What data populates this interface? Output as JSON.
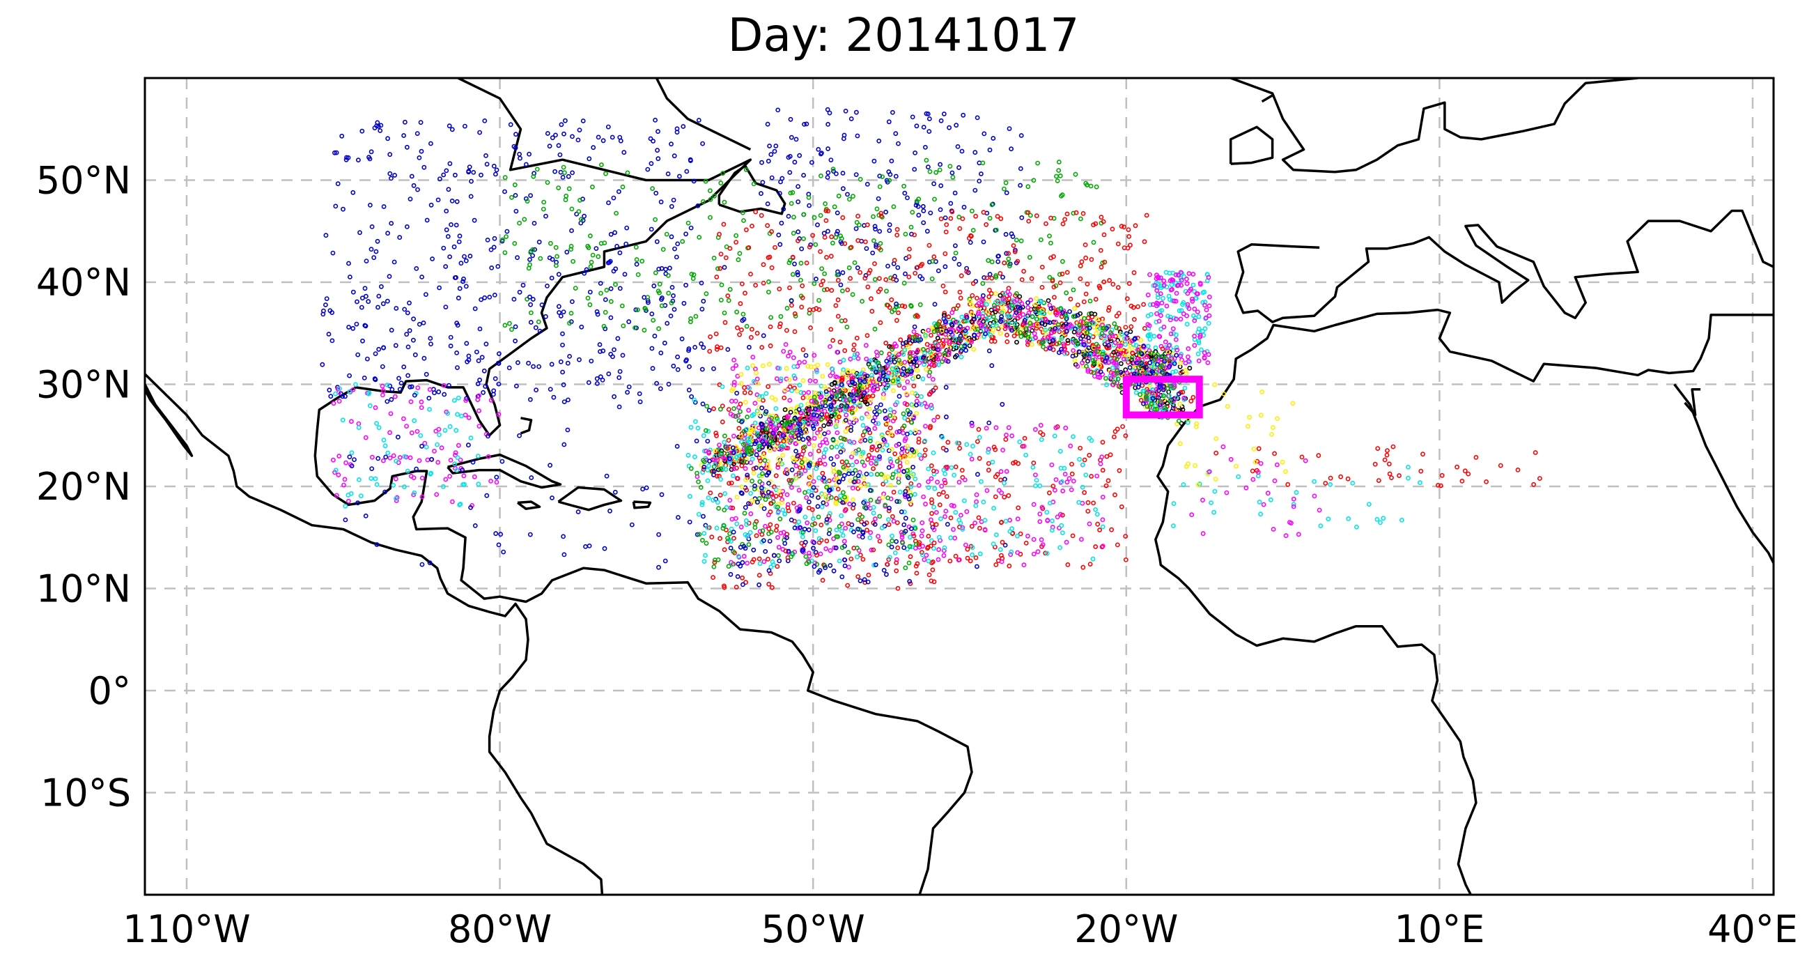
{
  "title": "Day: 20141017",
  "map": {
    "projection": "PlateCarree",
    "lon_range": [
      -114,
      42
    ],
    "lat_range": [
      -20,
      60
    ],
    "gridlines": true,
    "lon_ticks": [
      {
        "value": -110,
        "label": "110°W"
      },
      {
        "value": -80,
        "label": "80°W"
      },
      {
        "value": -50,
        "label": "50°W"
      },
      {
        "value": -20,
        "label": "20°W"
      },
      {
        "value": 10,
        "label": "10°E"
      },
      {
        "value": 40,
        "label": "40°E"
      }
    ],
    "lat_ticks": [
      {
        "value": 50,
        "label": "50°N"
      },
      {
        "value": 40,
        "label": "40°N"
      },
      {
        "value": 30,
        "label": "30°N"
      },
      {
        "value": 20,
        "label": "20°N"
      },
      {
        "value": 10,
        "label": "10°N"
      },
      {
        "value": 0,
        "label": "0°"
      },
      {
        "value": -10,
        "label": "10°S"
      }
    ],
    "source_box": {
      "lon": [
        -20,
        -13
      ],
      "lat": [
        27,
        30.5
      ],
      "color": "#ff00ff"
    },
    "coastline_color": "#000000"
  },
  "chart_data": {
    "type": "scatter",
    "title": "Day: 20141017",
    "series_colors": [
      "#0000cc",
      "#ff0000",
      "#00aa00",
      "#ff00ff",
      "#00e5e5",
      "#ffee00",
      "#000000"
    ],
    "clusters": [
      {
        "color": "#0000cc",
        "lon": [
          -97,
          -60
        ],
        "lat": [
          28,
          56
        ],
        "count": 420
      },
      {
        "color": "#0000cc",
        "lon": [
          -55,
          -30
        ],
        "lat": [
          40,
          57
        ],
        "count": 200
      },
      {
        "color": "#00aa00",
        "lon": [
          -80,
          -22
        ],
        "lat": [
          35,
          52
        ],
        "count": 300
      },
      {
        "color": "#ff0000",
        "lon": [
          -60,
          -18
        ],
        "lat": [
          33,
          47
        ],
        "count": 300
      },
      {
        "color": "#ff00ff",
        "lon": [
          -96,
          -80
        ],
        "lat": [
          18,
          30
        ],
        "count": 90
      },
      {
        "color": "#00e5e5",
        "lon": [
          -96,
          -82
        ],
        "lat": [
          18,
          30
        ],
        "count": 60
      },
      {
        "color": "#0000cc",
        "lon": [
          -95,
          -30
        ],
        "lat": [
          12,
          42
        ],
        "count": 200
      },
      {
        "color": "#ff00ff",
        "lon": [
          -58,
          -38
        ],
        "lat": [
          12,
          34
        ],
        "count": 320
      },
      {
        "color": "#ff0000",
        "lon": [
          -60,
          -38
        ],
        "lat": [
          10,
          30
        ],
        "count": 250
      },
      {
        "color": "#00e5e5",
        "lon": [
          -62,
          -38
        ],
        "lat": [
          12,
          33
        ],
        "count": 220
      },
      {
        "color": "#ffee00",
        "lon": [
          -58,
          -40
        ],
        "lat": [
          18,
          32
        ],
        "count": 180
      },
      {
        "color": "#00aa00",
        "lon": [
          -62,
          -40
        ],
        "lat": [
          12,
          28
        ],
        "count": 150
      },
      {
        "color": "#0000cc",
        "lon": [
          -58,
          -40
        ],
        "lat": [
          10,
          28
        ],
        "count": 160
      },
      {
        "color": "#ff0000",
        "lon": [
          -40,
          -20
        ],
        "lat": [
          12,
          26
        ],
        "count": 120
      },
      {
        "color": "#ff00ff",
        "lon": [
          -38,
          -22
        ],
        "lat": [
          12,
          26
        ],
        "count": 90
      },
      {
        "color": "#00e5e5",
        "lon": [
          -38,
          -22
        ],
        "lat": [
          12,
          25
        ],
        "count": 70
      },
      {
        "color": "#00e5e5",
        "lon": [
          -18,
          -12
        ],
        "lat": [
          32,
          41
        ],
        "count": 100
      },
      {
        "color": "#ff00ff",
        "lon": [
          -18,
          -12
        ],
        "lat": [
          32,
          41
        ],
        "count": 100
      },
      {
        "color": "#ff0000",
        "lon": [
          -12,
          20
        ],
        "lat": [
          20,
          24
        ],
        "count": 40
      },
      {
        "color": "#00e5e5",
        "lon": [
          -16,
          12
        ],
        "lat": [
          16,
          22
        ],
        "count": 30
      },
      {
        "color": "#ffee00",
        "lon": [
          -16,
          -4
        ],
        "lat": [
          20,
          30
        ],
        "count": 30
      },
      {
        "color": "#ff00ff",
        "lon": [
          -14,
          0
        ],
        "lat": [
          15,
          24
        ],
        "count": 25
      }
    ],
    "band_mean_path": [
      [
        -60,
        22
      ],
      [
        -50,
        27
      ],
      [
        -42,
        32
      ],
      [
        -32,
        37
      ],
      [
        -24,
        34.5
      ],
      [
        -18,
        31
      ],
      [
        -15,
        29
      ]
    ],
    "band_series": [
      {
        "color": "#ff0000",
        "count": 380
      },
      {
        "color": "#000000",
        "count": 300
      },
      {
        "color": "#ffee00",
        "count": 260
      },
      {
        "color": "#00e5e5",
        "count": 260
      },
      {
        "color": "#ff00ff",
        "count": 300
      },
      {
        "color": "#0000cc",
        "count": 180
      },
      {
        "color": "#00aa00",
        "count": 160
      }
    ]
  }
}
